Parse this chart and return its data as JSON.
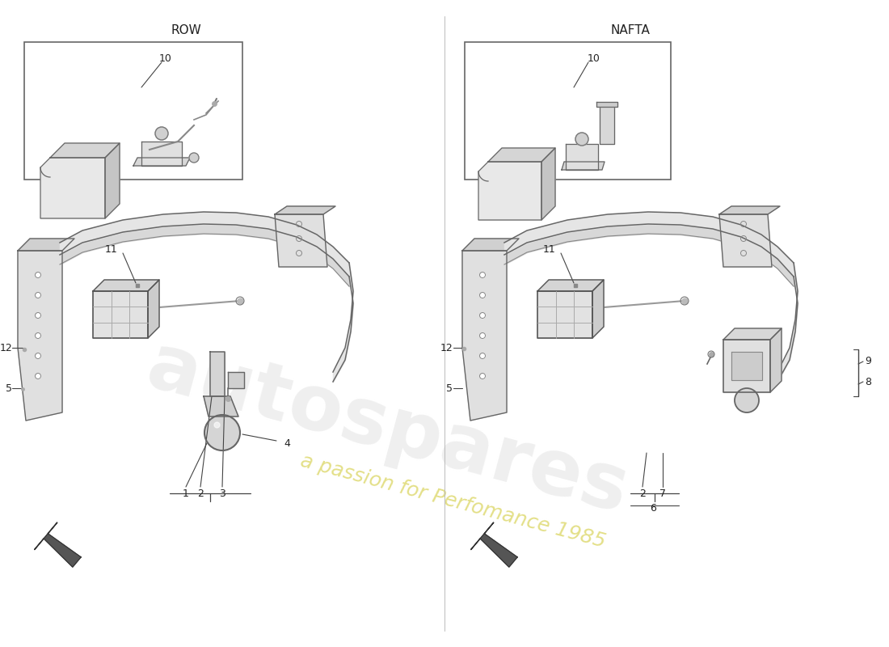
{
  "bg": "#ffffff",
  "section_left": "ROW",
  "section_right": "NAFTA",
  "divider_color": "#cccccc",
  "label_color": "#222222",
  "line_color": "#555555",
  "part_color": "#e8e8e8",
  "watermark_text": "autospares",
  "watermark_sub": "a passion for Perfomance 1985",
  "watermark_main_color": "#c8c8c8",
  "watermark_sub_color": "#c8c020",
  "fontsize_label": 9,
  "fontsize_section": 11
}
